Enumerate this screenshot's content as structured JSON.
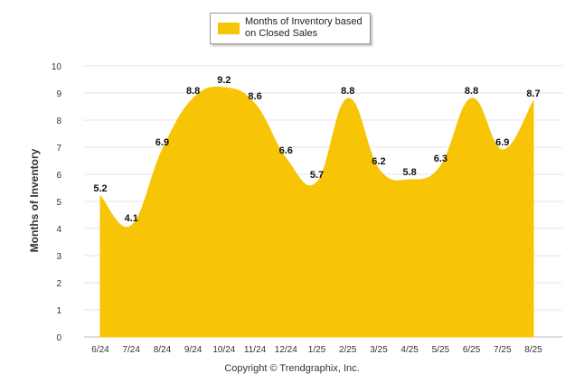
{
  "chart_data": {
    "type": "area",
    "categories": [
      "6/24",
      "7/24",
      "8/24",
      "9/24",
      "10/24",
      "11/24",
      "12/24",
      "1/25",
      "2/25",
      "3/25",
      "4/25",
      "5/25",
      "6/25",
      "7/25",
      "8/25"
    ],
    "series": [
      {
        "name": "Months of Inventory based on Closed Sales",
        "values": [
          5.2,
          4.1,
          6.9,
          8.8,
          9.2,
          8.6,
          6.6,
          5.7,
          8.8,
          6.2,
          5.8,
          6.3,
          8.8,
          6.9,
          8.7
        ],
        "color": "#f7c406"
      }
    ],
    "ylabel": "Months of Inventory",
    "xlabel": "",
    "ylim": [
      0,
      10
    ],
    "yticks": [
      0,
      1,
      2,
      3,
      4,
      5,
      6,
      7,
      8,
      9,
      10
    ],
    "grid": true,
    "legend_position": "top-center",
    "data_labels": true
  },
  "footer": {
    "copyright": "Copyright © Trendgraphix, Inc."
  }
}
